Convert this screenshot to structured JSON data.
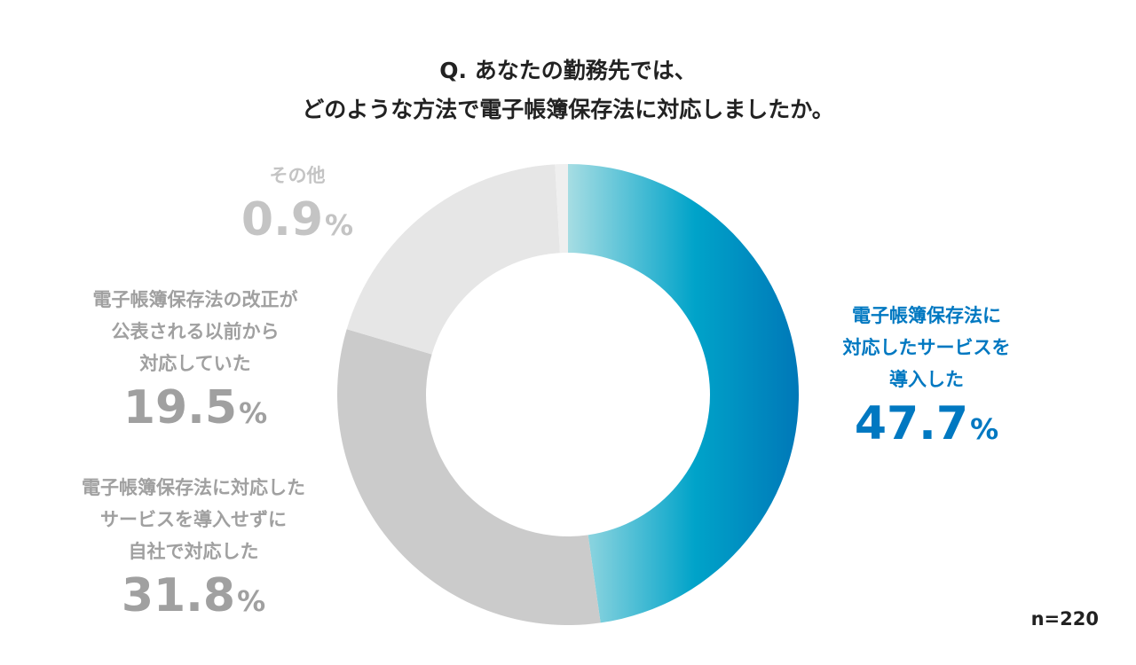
{
  "title": {
    "line1": "Q. あなたの勤務先では、",
    "line2": "どのような方法で電子帳簿保存法に対応しましたか。"
  },
  "colors": {
    "highlight_start": "#a6dde3",
    "highlight_mid": "#00a3c9",
    "highlight_end": "#0078b8",
    "highlight_text": "#0078c1",
    "slice_mid": "#cbcbcb",
    "slice_light": "#e6e6e6",
    "slice_lightest": "#efefef",
    "label_gray": "#a0a0a0",
    "label_light": "#c4c4c4"
  },
  "chart_data": {
    "type": "pie",
    "donut": true,
    "title": "Q. あなたの勤務先では、どのような方法で電子帳簿保存法に対応しましたか。",
    "unit": "%",
    "n_label": "n=220",
    "slices": [
      {
        "key": "service",
        "label_lines": [
          "電子帳簿保存法に",
          "対応したサービスを",
          "導入した"
        ],
        "value": 47.7,
        "value_text": "47.7"
      },
      {
        "key": "inhouse",
        "label_lines": [
          "電子帳簿保存法に対応した",
          "サービスを導入せずに",
          "自社で対応した"
        ],
        "value": 31.8,
        "value_text": "31.8"
      },
      {
        "key": "before",
        "label_lines": [
          "電子帳簿保存法の改正が",
          "公表される以前から",
          "対応していた"
        ],
        "value": 19.5,
        "value_text": "19.5"
      },
      {
        "key": "other",
        "label_lines": [
          "その他"
        ],
        "value": 0.9,
        "value_text": "0.9"
      }
    ]
  }
}
